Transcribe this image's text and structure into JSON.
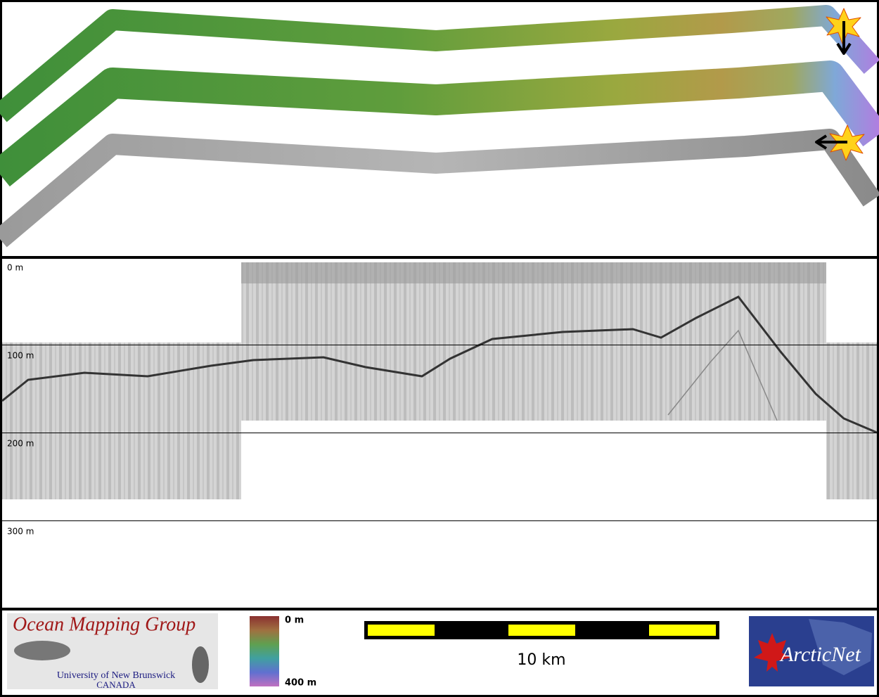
{
  "profile": {
    "depth_labels": [
      "0 m",
      "100 m",
      "200 m",
      "300 m"
    ]
  },
  "legend": {
    "colorbar": {
      "top": "0 m",
      "bottom": "400 m"
    },
    "scale_bar": "10 km"
  },
  "logos": {
    "omg": {
      "title": "Ocean Mapping Group",
      "university": "University of New Brunswick",
      "country": "CANADA"
    },
    "arcticnet": "ArcticNet"
  }
}
